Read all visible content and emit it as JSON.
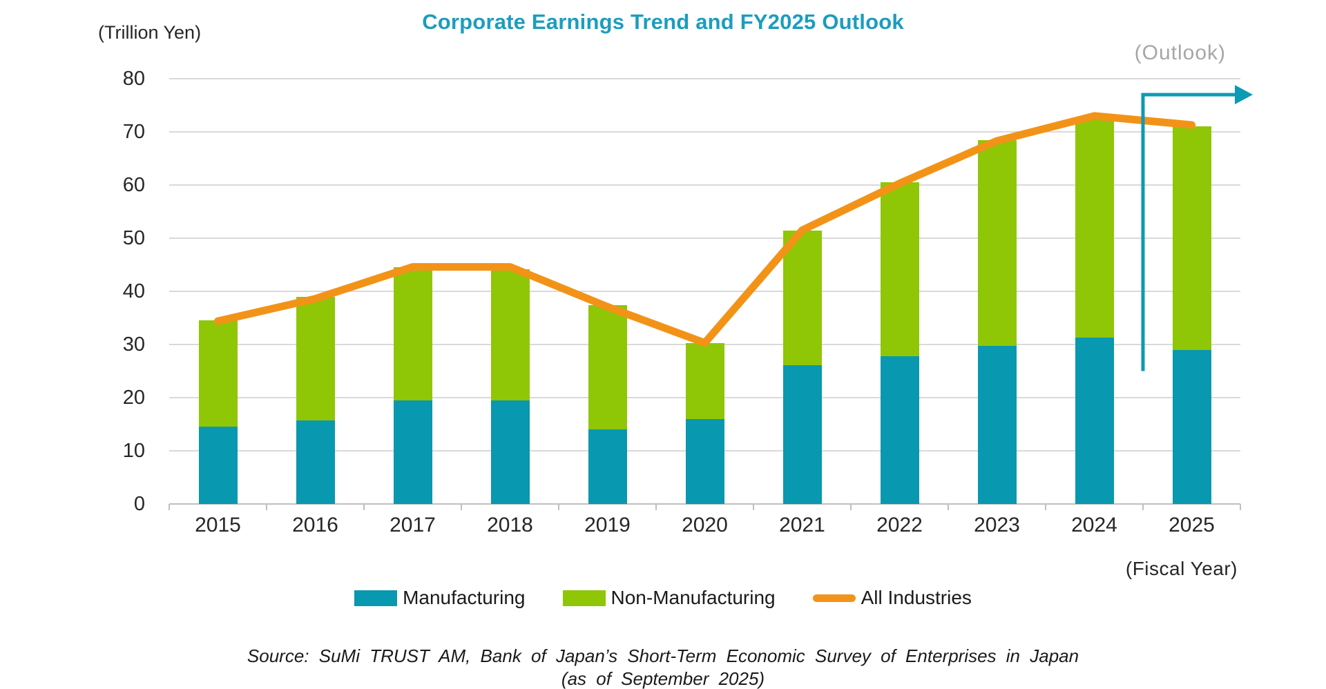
{
  "title": "Corporate Earnings Trend and FY2025 Outlook",
  "labels": {
    "y_unit": "(Trillion Yen)",
    "outlook": "(Outlook)",
    "fiscal_year": "(Fiscal Year)",
    "source_line1": "Source:  SuMi TRUST AM, Bank of Japan’s Short-Term Economic Survey of Enterprises in Japan",
    "source_line2": "(as of September 2025)"
  },
  "legend": [
    {
      "label": "Manufacturing",
      "color": "#0898AF",
      "marker": "rect"
    },
    {
      "label": "Non-Manufacturing",
      "color": "#8FC606",
      "marker": "rect"
    },
    {
      "label": "All Industries",
      "color": "#F29318",
      "marker": "line"
    }
  ],
  "colors": {
    "manufacturing_bar": "#0898AF",
    "non_manufacturing_bar": "#8FC606",
    "all_industries_line": "#F29318",
    "title_text": "#1C9DBE",
    "outlook_text": "#A6A6A6",
    "outlook_bracket": "#0D9AB5",
    "gridline": "#D9D9D9",
    "axis_line": "#BFBFBF",
    "body_text": "#262626"
  },
  "chart_data": {
    "type": "bar+line",
    "title": "Corporate Earnings Trend and FY2025 Outlook",
    "ylabel": "(Trillion Yen)",
    "xlabel": "(Fiscal Year)",
    "ylim": [
      0,
      80
    ],
    "yticks": [
      0,
      10,
      20,
      30,
      40,
      50,
      60,
      70,
      80
    ],
    "grid": true,
    "legend_position": "bottom",
    "categories": [
      "2015",
      "2016",
      "2017",
      "2018",
      "2019",
      "2020",
      "2021",
      "2022",
      "2023",
      "2024",
      "2025"
    ],
    "series": [
      {
        "name": "Manufacturing",
        "type": "bar",
        "stacked": true,
        "color": "#0898AF",
        "values": [
          14.5,
          15.7,
          19.5,
          19.5,
          14.0,
          16.0,
          26.1,
          27.8,
          29.7,
          31.3,
          29.0
        ]
      },
      {
        "name": "Non-Manufacturing",
        "type": "bar",
        "stacked": true,
        "color": "#8FC606",
        "values": [
          20.0,
          23.2,
          25.0,
          24.7,
          23.4,
          14.2,
          25.3,
          32.7,
          38.7,
          41.4,
          42.0
        ]
      },
      {
        "name": "All Industries",
        "type": "line",
        "color": "#F29318",
        "values": [
          34.4,
          38.6,
          44.6,
          44.6,
          37.1,
          30.3,
          51.5,
          60.3,
          68.3,
          73.0,
          71.3
        ]
      }
    ],
    "annotations": {
      "outlook_bracket": {
        "label": "(Outlook)",
        "covers_year": "2025",
        "top_value": 77,
        "bottom_value": 25,
        "color": "#0D9AB5"
      }
    }
  }
}
